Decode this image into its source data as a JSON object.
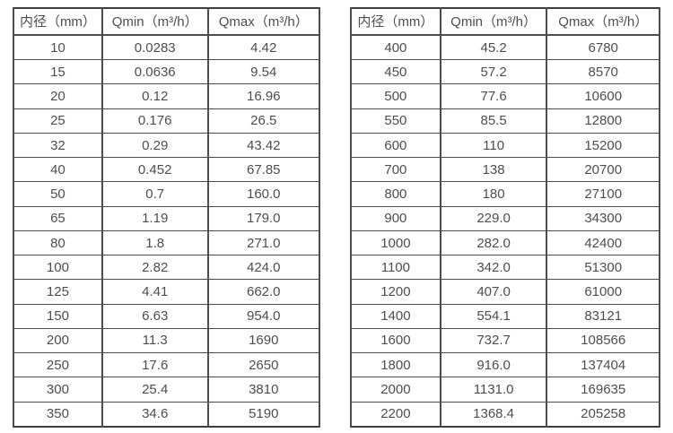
{
  "colors": {
    "background": "#ffffff",
    "border_outer": "#3d3d3d",
    "border_inner": "#4c4c4c",
    "text": "#4d4d4d"
  },
  "tables": [
    {
      "name": "small-diameter-flow-rates",
      "headers": [
        "内径（mm）",
        "Qmin（m³/h）",
        "Qmax（m³/h）"
      ],
      "rows": [
        [
          "10",
          "0.0283",
          "4.42"
        ],
        [
          "15",
          "0.0636",
          "9.54"
        ],
        [
          "20",
          "0.12",
          "16.96"
        ],
        [
          "25",
          "0.176",
          "26.5"
        ],
        [
          "32",
          "0.29",
          "43.42"
        ],
        [
          "40",
          "0.452",
          "67.85"
        ],
        [
          "50",
          "0.7",
          "160.0"
        ],
        [
          "65",
          "1.19",
          "179.0"
        ],
        [
          "80",
          "1.8",
          "271.0"
        ],
        [
          "100",
          "2.82",
          "424.0"
        ],
        [
          "125",
          "4.41",
          "662.0"
        ],
        [
          "150",
          "6.63",
          "954.0"
        ],
        [
          "200",
          "11.3",
          "1690"
        ],
        [
          "250",
          "17.6",
          "2650"
        ],
        [
          "300",
          "25.4",
          "3810"
        ],
        [
          "350",
          "34.6",
          "5190"
        ]
      ]
    },
    {
      "name": "large-diameter-flow-rates",
      "headers": [
        "内径（mm）",
        "Qmin（m³/h）",
        "Qmax（m³/h）"
      ],
      "rows": [
        [
          "400",
          "45.2",
          "6780"
        ],
        [
          "450",
          "57.2",
          "8570"
        ],
        [
          "500",
          "77.6",
          "10600"
        ],
        [
          "550",
          "85.5",
          "12800"
        ],
        [
          "600",
          "110",
          "15200"
        ],
        [
          "700",
          "138",
          "20700"
        ],
        [
          "800",
          "180",
          "27100"
        ],
        [
          "900",
          "229.0",
          "34300"
        ],
        [
          "1000",
          "282.0",
          "42400"
        ],
        [
          "1100",
          "342.0",
          "51300"
        ],
        [
          "1200",
          "407.0",
          "61000"
        ],
        [
          "1400",
          "554.1",
          "83121"
        ],
        [
          "1600",
          "732.7",
          "108566"
        ],
        [
          "1800",
          "916.0",
          "137404"
        ],
        [
          "2000",
          "1131.0",
          "169635"
        ],
        [
          "2200",
          "1368.4",
          "205258"
        ]
      ]
    }
  ],
  "chart_data": [
    {
      "type": "table",
      "title": "",
      "columns": [
        "内径（mm）",
        "Qmin（m³/h）",
        "Qmax（m³/h）"
      ],
      "inner_diameter_mm": [
        10,
        15,
        20,
        25,
        32,
        40,
        50,
        65,
        80,
        100,
        125,
        150,
        200,
        250,
        300,
        350
      ],
      "qmin_m3h": [
        0.0283,
        0.0636,
        0.12,
        0.176,
        0.29,
        0.452,
        0.7,
        1.19,
        1.8,
        2.82,
        4.41,
        6.63,
        11.3,
        17.6,
        25.4,
        34.6
      ],
      "qmax_m3h": [
        4.42,
        9.54,
        16.96,
        26.5,
        43.42,
        67.85,
        160.0,
        179.0,
        271.0,
        424.0,
        662.0,
        954.0,
        1690,
        2650,
        3810,
        5190
      ]
    },
    {
      "type": "table",
      "title": "",
      "columns": [
        "内径（mm）",
        "Qmin（m³/h）",
        "Qmax（m³/h）"
      ],
      "inner_diameter_mm": [
        400,
        450,
        500,
        550,
        600,
        700,
        800,
        900,
        1000,
        1100,
        1200,
        1400,
        1600,
        1800,
        2000,
        2200
      ],
      "qmin_m3h": [
        45.2,
        57.2,
        77.6,
        85.5,
        110,
        138,
        180,
        229.0,
        282.0,
        342.0,
        407.0,
        554.1,
        732.7,
        916.0,
        1131.0,
        1368.4
      ],
      "qmax_m3h": [
        6780,
        8570,
        10600,
        12800,
        15200,
        20700,
        27100,
        34300,
        42400,
        51300,
        61000,
        83121,
        108566,
        137404,
        169635,
        205258
      ]
    }
  ]
}
